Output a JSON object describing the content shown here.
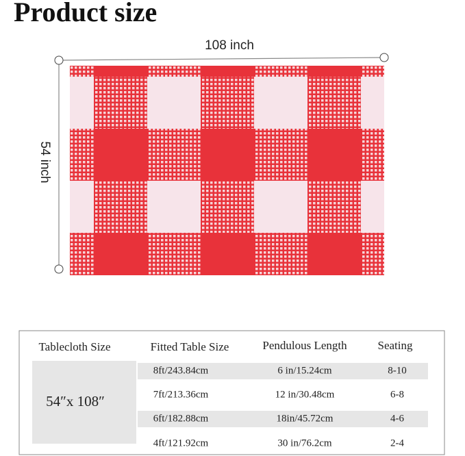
{
  "title": "Product size",
  "dimensions": {
    "width": "108 inch",
    "height": "54 inch"
  },
  "table": {
    "headers": [
      "Tablecloth Size",
      "Fitted Table Size",
      "Pendulous Length",
      "Seating"
    ],
    "size": "54″x 108″",
    "rows": [
      [
        "8ft/243.84cm",
        "6 in/15.24cm",
        "8-10"
      ],
      [
        "7ft/213.36cm",
        "12 in/30.48cm",
        "6-8"
      ],
      [
        "6ft/182.88cm",
        "18in/45.72cm",
        "4-6"
      ],
      [
        "4ft/121.92cm",
        "30 in/76.2cm",
        "2-4"
      ]
    ]
  }
}
